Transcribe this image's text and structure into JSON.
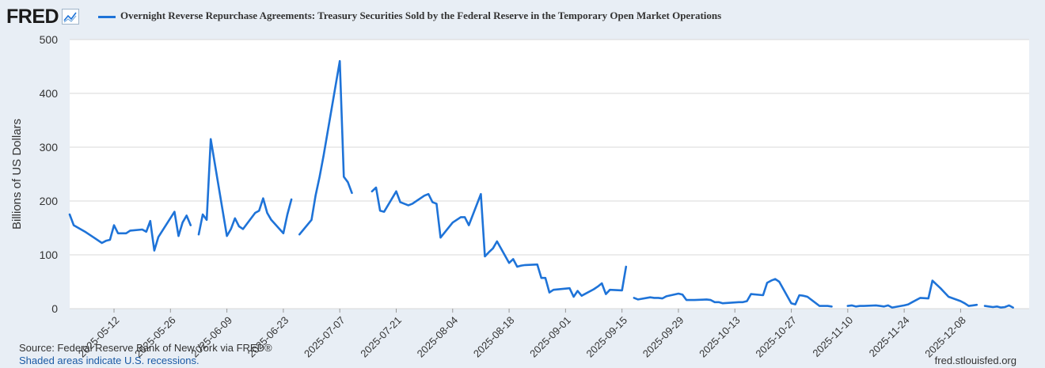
{
  "header": {
    "logo_text": "FRED",
    "logo_icon": "line-chart-icon",
    "series_title": "Overnight Reverse Repurchase Agreements: Treasury Securities Sold by the Federal Reserve in the Temporary Open Market Operations"
  },
  "footer": {
    "source": "Source: Federal Reserve Bank of New York via FRED®",
    "shaded": "Shaded areas indicate U.S. recessions.",
    "url": "fred.stlouisfed.org"
  },
  "colors": {
    "line": "#1e73d8",
    "plot_bg": "#ffffff",
    "grid": "#d8d8d8"
  },
  "chart_data": {
    "type": "line",
    "title": "Overnight Reverse Repurchase Agreements: Treasury Securities Sold by the Federal Reserve in the Temporary Open Market Operations",
    "xlabel": "",
    "ylabel": "Billions of US Dollars",
    "ylim": [
      0,
      500
    ],
    "yticks": [
      0,
      100,
      200,
      300,
      400,
      500
    ],
    "xlim": [
      "2025-05-01",
      "2025-12-25"
    ],
    "xticks": [
      "2025-05-12",
      "2025-05-26",
      "2025-06-09",
      "2025-06-23",
      "2025-07-07",
      "2025-07-21",
      "2025-08-04",
      "2025-08-18",
      "2025-09-01",
      "2025-09-15",
      "2025-09-29",
      "2025-10-13",
      "2025-10-27",
      "2025-11-10",
      "2025-11-24",
      "2025-12-08"
    ],
    "grid": true,
    "series": [
      {
        "name": "Overnight Reverse Repurchase Agreements: Treasury Securities Sold by the Federal Reserve in the Temporary Open Market Operations",
        "segments": [
          [
            [
              "2025-05-01",
              175
            ],
            [
              "2025-05-02",
              155
            ],
            [
              "2025-05-05",
              142
            ],
            [
              "2025-05-06",
              137
            ],
            [
              "2025-05-07",
              132
            ],
            [
              "2025-05-08",
              127
            ],
            [
              "2025-05-09",
              122
            ],
            [
              "2025-05-10",
              126
            ],
            [
              "2025-05-11",
              128
            ],
            [
              "2025-05-12",
              155
            ],
            [
              "2025-05-13",
              140
            ],
            [
              "2025-05-14",
              140
            ],
            [
              "2025-05-15",
              140
            ],
            [
              "2025-05-16",
              145
            ],
            [
              "2025-05-19",
              147
            ],
            [
              "2025-05-20",
              143
            ],
            [
              "2025-05-21",
              163
            ],
            [
              "2025-05-22",
              108
            ],
            [
              "2025-05-23",
              133
            ],
            [
              "2025-05-27",
              180
            ],
            [
              "2025-05-28",
              135
            ],
            [
              "2025-05-29",
              160
            ],
            [
              "2025-05-30",
              173
            ],
            [
              "2025-05-31",
              155
            ]
          ],
          [
            [
              "2025-06-02",
              138
            ],
            [
              "2025-06-03",
              175
            ],
            [
              "2025-06-04",
              165
            ],
            [
              "2025-06-05",
              315
            ],
            [
              "2025-06-09",
              135
            ],
            [
              "2025-06-10",
              148
            ],
            [
              "2025-06-11",
              168
            ],
            [
              "2025-06-12",
              153
            ],
            [
              "2025-06-13",
              148
            ],
            [
              "2025-06-16",
              178
            ],
            [
              "2025-06-17",
              182
            ],
            [
              "2025-06-18",
              205
            ],
            [
              "2025-06-19",
              178
            ],
            [
              "2025-06-20",
              165
            ],
            [
              "2025-06-23",
              140
            ],
            [
              "2025-06-24",
              175
            ],
            [
              "2025-06-25",
              203
            ]
          ],
          [
            [
              "2025-06-27",
              138
            ],
            [
              "2025-06-30",
              165
            ],
            [
              "2025-07-01",
              210
            ],
            [
              "2025-07-02",
              245
            ],
            [
              "2025-07-03",
              285
            ],
            [
              "2025-07-07",
              460
            ],
            [
              "2025-07-08",
              245
            ],
            [
              "2025-07-09",
              235
            ],
            [
              "2025-07-10",
              215
            ]
          ],
          [
            [
              "2025-07-15",
              218
            ],
            [
              "2025-07-16",
              225
            ],
            [
              "2025-07-17",
              182
            ],
            [
              "2025-07-18",
              180
            ],
            [
              "2025-07-21",
              218
            ],
            [
              "2025-07-22",
              198
            ],
            [
              "2025-07-23",
              195
            ],
            [
              "2025-07-24",
              192
            ],
            [
              "2025-07-25",
              195
            ],
            [
              "2025-07-28",
              210
            ],
            [
              "2025-07-29",
              213
            ],
            [
              "2025-07-30",
              198
            ],
            [
              "2025-07-31",
              195
            ],
            [
              "2025-08-01",
              132
            ],
            [
              "2025-08-04",
              160
            ],
            [
              "2025-08-05",
              165
            ],
            [
              "2025-08-06",
              170
            ],
            [
              "2025-08-07",
              170
            ],
            [
              "2025-08-08",
              155
            ],
            [
              "2025-08-11",
              213
            ],
            [
              "2025-08-12",
              97
            ],
            [
              "2025-08-13",
              105
            ],
            [
              "2025-08-14",
              112
            ],
            [
              "2025-08-15",
              125
            ],
            [
              "2025-08-18",
              85
            ],
            [
              "2025-08-19",
              92
            ],
            [
              "2025-08-20",
              78
            ],
            [
              "2025-08-21",
              80
            ],
            [
              "2025-08-22",
              81
            ],
            [
              "2025-08-25",
              82
            ],
            [
              "2025-08-26",
              57
            ],
            [
              "2025-08-27",
              57
            ],
            [
              "2025-08-28",
              30
            ],
            [
              "2025-08-29",
              35
            ],
            [
              "2025-09-02",
              38
            ],
            [
              "2025-09-03",
              22
            ],
            [
              "2025-09-04",
              33
            ],
            [
              "2025-09-05",
              24
            ],
            [
              "2025-09-08",
              36
            ],
            [
              "2025-09-09",
              41
            ],
            [
              "2025-09-10",
              47
            ],
            [
              "2025-09-11",
              27
            ],
            [
              "2025-09-12",
              35
            ],
            [
              "2025-09-15",
              34
            ],
            [
              "2025-09-16",
              78
            ]
          ],
          [
            [
              "2025-09-18",
              20
            ],
            [
              "2025-09-19",
              17
            ],
            [
              "2025-09-22",
              21
            ],
            [
              "2025-09-23",
              20
            ],
            [
              "2025-09-24",
              20
            ],
            [
              "2025-09-25",
              19
            ],
            [
              "2025-09-26",
              23
            ],
            [
              "2025-09-29",
              28
            ],
            [
              "2025-09-30",
              26
            ],
            [
              "2025-10-01",
              16
            ],
            [
              "2025-10-02",
              16
            ],
            [
              "2025-10-03",
              16
            ],
            [
              "2025-10-06",
              17
            ],
            [
              "2025-10-07",
              16
            ],
            [
              "2025-10-08",
              12
            ],
            [
              "2025-10-09",
              12
            ],
            [
              "2025-10-10",
              10
            ],
            [
              "2025-10-14",
              12
            ],
            [
              "2025-10-15",
              12
            ],
            [
              "2025-10-16",
              14
            ],
            [
              "2025-10-17",
              27
            ],
            [
              "2025-10-20",
              25
            ],
            [
              "2025-10-21",
              48
            ],
            [
              "2025-10-22",
              52
            ],
            [
              "2025-10-23",
              55
            ],
            [
              "2025-10-24",
              50
            ],
            [
              "2025-10-27",
              10
            ],
            [
              "2025-10-28",
              8
            ],
            [
              "2025-10-29",
              25
            ],
            [
              "2025-10-30",
              24
            ],
            [
              "2025-10-31",
              22
            ],
            [
              "2025-11-03",
              5
            ],
            [
              "2025-11-04",
              5
            ],
            [
              "2025-11-05",
              5
            ],
            [
              "2025-11-06",
              4
            ]
          ],
          [
            [
              "2025-11-10",
              5
            ],
            [
              "2025-11-11",
              6
            ],
            [
              "2025-11-12",
              4
            ],
            [
              "2025-11-13",
              5
            ],
            [
              "2025-11-14",
              5
            ],
            [
              "2025-11-17",
              6
            ],
            [
              "2025-11-18",
              5
            ],
            [
              "2025-11-19",
              4
            ],
            [
              "2025-11-20",
              6
            ],
            [
              "2025-11-21",
              2
            ],
            [
              "2025-11-24",
              6
            ],
            [
              "2025-11-25",
              8
            ],
            [
              "2025-11-26",
              12
            ],
            [
              "2025-11-28",
              20
            ],
            [
              "2025-11-30",
              19
            ],
            [
              "2025-12-01",
              52
            ],
            [
              "2025-12-02",
              45
            ],
            [
              "2025-12-03",
              38
            ],
            [
              "2025-12-04",
              30
            ],
            [
              "2025-12-05",
              22
            ],
            [
              "2025-12-08",
              14
            ],
            [
              "2025-12-09",
              10
            ],
            [
              "2025-12-10",
              5
            ],
            [
              "2025-12-11",
              6
            ],
            [
              "2025-12-12",
              7
            ]
          ],
          [
            [
              "2025-12-14",
              5
            ],
            [
              "2025-12-15",
              4
            ],
            [
              "2025-12-16",
              3
            ],
            [
              "2025-12-17",
              4
            ],
            [
              "2025-12-18",
              2
            ],
            [
              "2025-12-19",
              3
            ],
            [
              "2025-12-20",
              6
            ],
            [
              "2025-12-21",
              2
            ]
          ]
        ]
      }
    ]
  }
}
